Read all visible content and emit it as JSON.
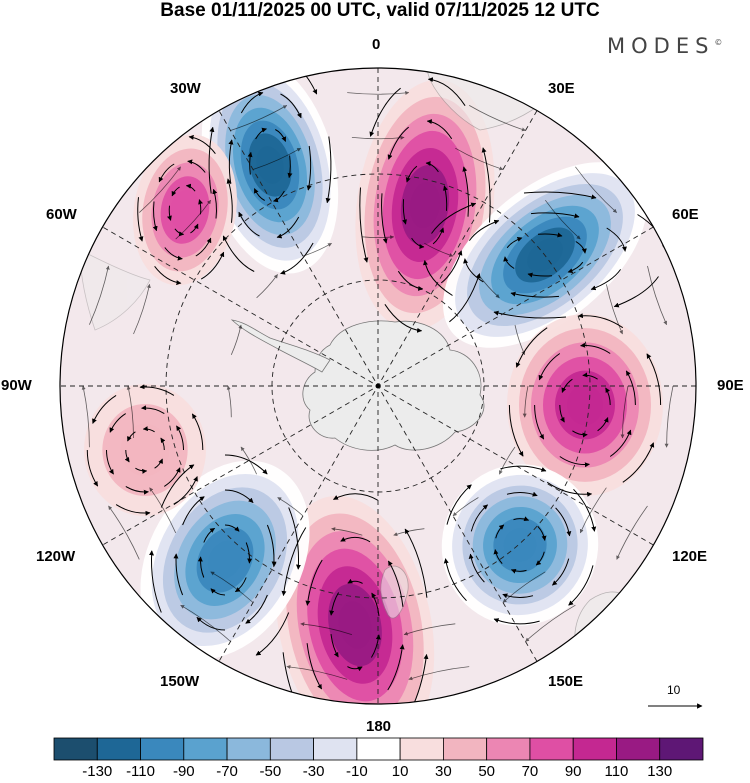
{
  "title": "Base 01/11/2025 00 UTC, valid 07/11/2025 12 UTC",
  "brand": "MODES",
  "brand_mark": "©",
  "longitude_labels": {
    "n0": "0",
    "n30e": "30E",
    "n60e": "60E",
    "n90e": "90E",
    "n120e": "120E",
    "n150e": "150E",
    "n180": "180",
    "n150w": "150W",
    "n120w": "120W",
    "n90w": "90W",
    "n60w": "60W",
    "n30w": "30W"
  },
  "reference_vector": {
    "label": "10",
    "value": 10
  },
  "colors": {
    "ocean_bg": "#ffffff",
    "land": "#e8e8e8",
    "frame": "#000000",
    "accent_blue": "#1d6b99",
    "accent_magenta": "#c4258f"
  },
  "colorbar": {
    "colors": [
      "#1c4e6e",
      "#1e6796",
      "#3a88bd",
      "#5aa2cf",
      "#8bb8dc",
      "#b9c8e3",
      "#dfe3f1",
      "#ffffff",
      "#f8dede",
      "#f2b5c0",
      "#ec86b3",
      "#df4fa4",
      "#c42891",
      "#991a83",
      "#5e1775"
    ],
    "ticks": [
      "-130",
      "-110",
      "-90",
      "-70",
      "-50",
      "-30",
      "-10",
      "10",
      "30",
      "50",
      "70",
      "90",
      "110",
      "130"
    ]
  },
  "anomaly_centres": [
    {
      "name": "30W",
      "value": -130
    },
    {
      "name": "15E",
      "value": 120
    },
    {
      "name": "55E",
      "value": -130
    },
    {
      "name": "95E",
      "value": 100
    },
    {
      "name": "125E",
      "value": -110
    },
    {
      "name": "175W",
      "value": 110
    },
    {
      "name": "130W",
      "value": -110
    },
    {
      "name": "45W",
      "value": 70
    },
    {
      "name": "105W",
      "value": 30
    }
  ]
}
